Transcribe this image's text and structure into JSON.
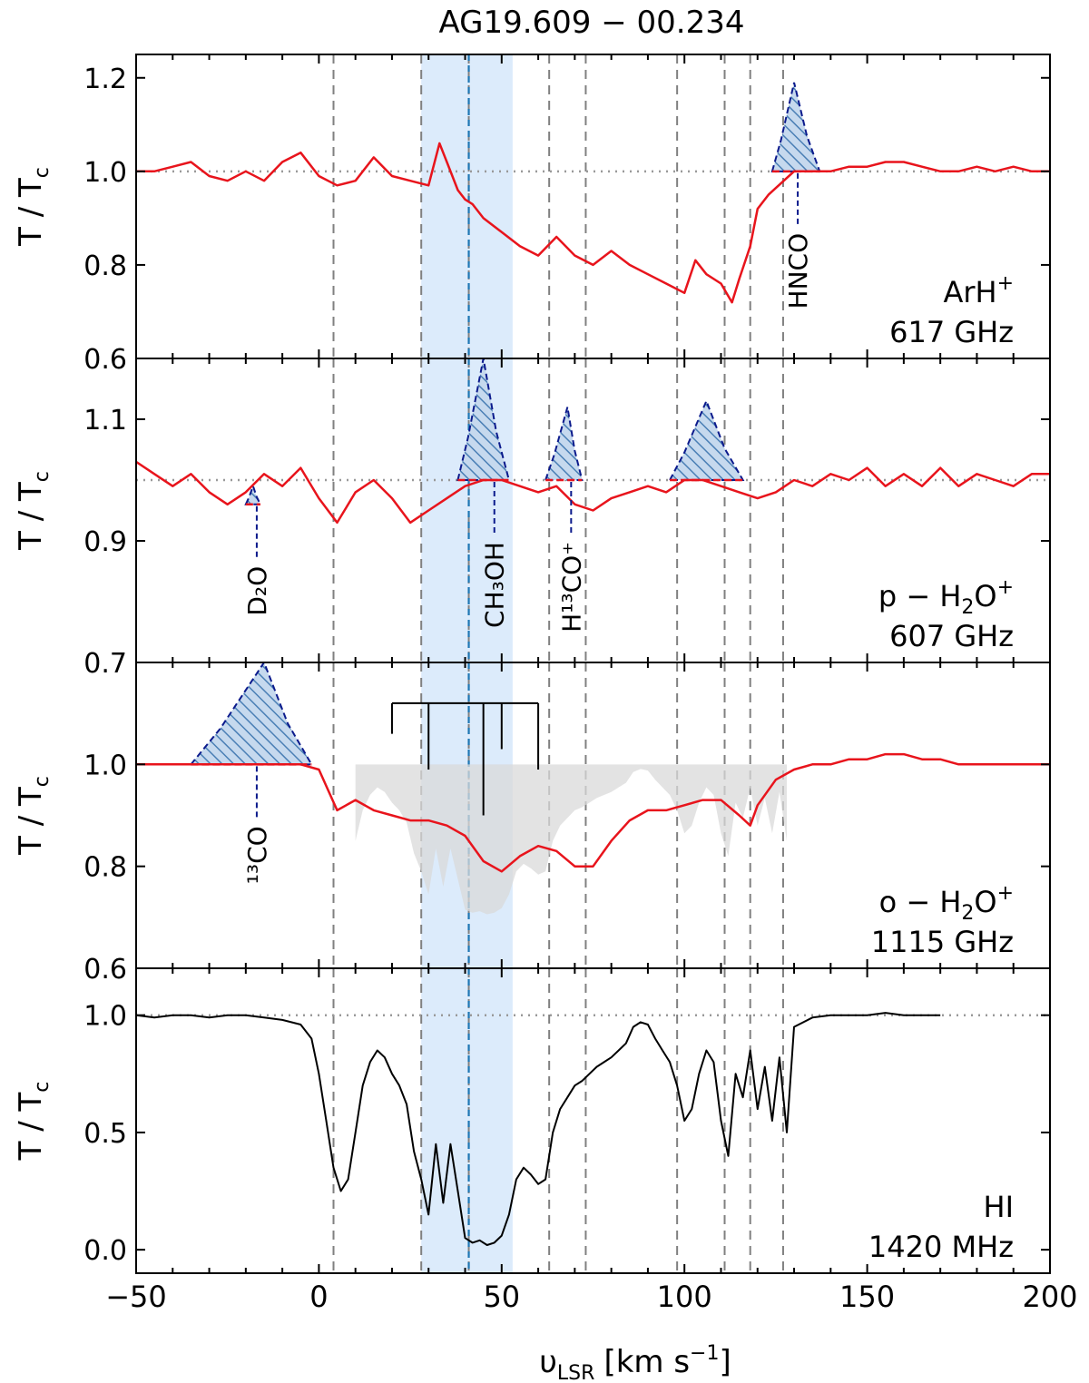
{
  "title": "AG19.609 − 00.234",
  "xlabel": {
    "main": "υ",
    "sub": "LSR",
    "units": "[km s",
    "sup": "−1",
    "close": "]"
  },
  "ylabel": {
    "main": "T / T",
    "sub": "c"
  },
  "colors": {
    "fit": "#e8141c",
    "data": "#000000",
    "blend": "#0b1a8c",
    "hatch": "#4a7fb5",
    "sysband": "#dcebfb",
    "sysline": "#1f77b4",
    "dashed": "#808080",
    "gray_fill": "#d9d9d9"
  },
  "chart_data": [
    {
      "panel": "ArH+",
      "type": "line",
      "species": "ArH",
      "species_sup": "+",
      "frequency": "617 GHz",
      "xlim": [
        -50,
        200
      ],
      "ylim": [
        0.6,
        1.25
      ],
      "yticks": [
        "0.6",
        "0.8",
        "1.0",
        "1.2"
      ],
      "series": [
        {
          "name": "observed",
          "x": [
            -50,
            -45,
            -40,
            -35,
            -30,
            -25,
            -20,
            -15,
            -10,
            -5,
            0,
            5,
            10,
            15,
            20,
            25,
            30,
            33,
            35,
            38,
            40,
            42,
            45,
            50,
            55,
            60,
            65,
            70,
            75,
            80,
            85,
            90,
            95,
            100,
            103,
            106,
            110,
            113,
            115,
            118,
            120,
            123,
            130,
            135,
            140,
            145,
            150,
            155,
            160,
            165,
            170,
            175,
            180,
            185,
            190,
            195,
            200
          ],
          "y": [
            1.0,
            1.0,
            1.01,
            1.02,
            0.99,
            0.98,
            1.0,
            0.98,
            1.02,
            1.04,
            0.99,
            0.97,
            0.98,
            1.03,
            0.99,
            0.98,
            0.97,
            1.06,
            1.02,
            0.96,
            0.94,
            0.93,
            0.9,
            0.87,
            0.84,
            0.82,
            0.86,
            0.82,
            0.8,
            0.83,
            0.8,
            0.78,
            0.76,
            0.74,
            0.81,
            0.78,
            0.76,
            0.72,
            0.77,
            0.84,
            0.92,
            0.95,
            1.0,
            1.0,
            1.0,
            1.01,
            1.01,
            1.02,
            1.02,
            1.01,
            1.0,
            1.0,
            1.01,
            1.0,
            1.01,
            1.0,
            1.0
          ]
        }
      ],
      "blends": [
        {
          "label": "HNCO",
          "x0": 124,
          "x1": 137,
          "peak_x": 130,
          "peak_y": 1.19,
          "base": 1.0,
          "label_x": 131
        }
      ]
    },
    {
      "panel": "p-H2O+",
      "type": "line",
      "species": "p − H",
      "species_sub": "2",
      "species_mid": "O",
      "species_sup": "+",
      "frequency": "607 GHz",
      "xlim": [
        -50,
        200
      ],
      "ylim": [
        0.7,
        1.2
      ],
      "yticks": [
        "0.7",
        "0.9",
        "1.1"
      ],
      "series": [
        {
          "name": "observed",
          "x": [
            -50,
            -45,
            -40,
            -35,
            -30,
            -25,
            -20,
            -15,
            -10,
            -5,
            0,
            5,
            10,
            15,
            20,
            25,
            30,
            35,
            40,
            45,
            50,
            55,
            60,
            65,
            70,
            75,
            80,
            85,
            90,
            95,
            100,
            105,
            110,
            115,
            120,
            125,
            130,
            135,
            140,
            145,
            150,
            155,
            160,
            165,
            170,
            175,
            180,
            185,
            190,
            195,
            200
          ],
          "y": [
            1.03,
            1.01,
            0.99,
            1.01,
            0.98,
            0.96,
            0.98,
            1.01,
            0.99,
            1.02,
            0.97,
            0.93,
            0.98,
            1.0,
            0.97,
            0.93,
            0.95,
            0.97,
            0.99,
            1.0,
            1.0,
            0.99,
            0.98,
            0.99,
            0.96,
            0.95,
            0.97,
            0.98,
            0.99,
            0.98,
            1.0,
            1.0,
            0.99,
            0.98,
            0.97,
            0.98,
            1.0,
            0.99,
            1.01,
            1.0,
            1.02,
            0.99,
            1.01,
            0.99,
            1.02,
            0.99,
            1.01,
            1.0,
            0.99,
            1.01,
            1.01
          ]
        }
      ],
      "blends": [
        {
          "label": "D₂O",
          "x0": -20,
          "x1": -16,
          "peak_x": -18,
          "peak_y": 0.99,
          "base": 0.96,
          "label_x": -17,
          "sub": "2",
          "pre": "D",
          "post": "O"
        },
        {
          "label": "CH₃OH",
          "x0": 38,
          "x1": 52,
          "peak_x": 45,
          "peak_y": 1.2,
          "base": 1.0,
          "label_x": 48
        },
        {
          "label": "H¹³CO⁺",
          "x0": 62,
          "x1": 72,
          "peak_x": 68,
          "peak_y": 1.12,
          "base": 1.0,
          "label_x": 69
        },
        {
          "label": "",
          "x0": 96,
          "x1": 116,
          "peak_x": 106,
          "peak_y": 1.13,
          "base": 1.0,
          "label_x": 106
        }
      ]
    },
    {
      "panel": "o-H2O+",
      "type": "line",
      "species": "o − H",
      "species_sub": "2",
      "species_mid": "O",
      "species_sup": "+",
      "frequency": "1115 GHz",
      "xlim": [
        -50,
        200
      ],
      "ylim": [
        0.6,
        1.2
      ],
      "yticks": [
        "0.6",
        "0.8",
        "1.0"
      ],
      "series": [
        {
          "name": "observed",
          "x": [
            -50,
            -40,
            -35,
            -30,
            -25,
            -20,
            -15,
            -10,
            -5,
            0,
            5,
            10,
            15,
            20,
            25,
            30,
            35,
            40,
            45,
            50,
            55,
            60,
            65,
            70,
            75,
            80,
            85,
            90,
            95,
            100,
            105,
            110,
            115,
            118,
            120,
            125,
            130,
            135,
            140,
            145,
            150,
            155,
            160,
            165,
            170,
            175,
            180,
            185,
            190,
            195,
            200
          ],
          "y": [
            1.0,
            1.0,
            1.0,
            1.0,
            1.0,
            1.0,
            1.0,
            1.0,
            1.0,
            0.99,
            0.91,
            0.93,
            0.91,
            0.9,
            0.89,
            0.89,
            0.88,
            0.86,
            0.81,
            0.79,
            0.82,
            0.84,
            0.83,
            0.8,
            0.8,
            0.85,
            0.89,
            0.91,
            0.91,
            0.92,
            0.93,
            0.93,
            0.9,
            0.88,
            0.92,
            0.97,
            0.99,
            1.0,
            1.0,
            1.01,
            1.01,
            1.02,
            1.02,
            1.01,
            1.01,
            1.0,
            1.0,
            1.0,
            1.0,
            1.0,
            1.0
          ]
        }
      ],
      "blends": [
        {
          "label": "¹³CO",
          "x0": -35,
          "x1": -2,
          "peak_x": -15,
          "peak_y": 1.2,
          "base": 1.0,
          "label_x": -17
        }
      ]
    },
    {
      "panel": "HI",
      "type": "line",
      "species": "HI",
      "frequency": "1420 MHz",
      "xlim": [
        -50,
        200
      ],
      "ylim": [
        -0.1,
        1.2
      ],
      "yticks": [
        "0.0",
        "0.5",
        "1.0"
      ],
      "series": [
        {
          "name": "observed",
          "x": [
            -50,
            -45,
            -40,
            -35,
            -30,
            -25,
            -20,
            -15,
            -10,
            -5,
            -2,
            0,
            2,
            4,
            6,
            8,
            10,
            12,
            14,
            16,
            18,
            20,
            22,
            24,
            26,
            28,
            30,
            32,
            34,
            36,
            38,
            40,
            42,
            44,
            46,
            48,
            50,
            52,
            54,
            56,
            58,
            60,
            62,
            64,
            66,
            68,
            70,
            72,
            74,
            76,
            78,
            80,
            82,
            84,
            86,
            88,
            90,
            92,
            94,
            96,
            98,
            100,
            102,
            104,
            106,
            108,
            110,
            112,
            114,
            116,
            118,
            120,
            122,
            124,
            126,
            128,
            130,
            135,
            140,
            145,
            150,
            155,
            160,
            165,
            170
          ],
          "y": [
            1.0,
            0.99,
            1.0,
            1.0,
            0.99,
            1.0,
            1.0,
            0.99,
            0.98,
            0.96,
            0.9,
            0.75,
            0.55,
            0.35,
            0.25,
            0.3,
            0.5,
            0.7,
            0.8,
            0.85,
            0.82,
            0.75,
            0.7,
            0.62,
            0.42,
            0.3,
            0.15,
            0.45,
            0.2,
            0.45,
            0.25,
            0.05,
            0.03,
            0.04,
            0.02,
            0.03,
            0.06,
            0.15,
            0.3,
            0.35,
            0.32,
            0.28,
            0.3,
            0.5,
            0.6,
            0.65,
            0.7,
            0.72,
            0.75,
            0.78,
            0.8,
            0.82,
            0.85,
            0.88,
            0.95,
            0.97,
            0.96,
            0.9,
            0.85,
            0.8,
            0.7,
            0.55,
            0.6,
            0.75,
            0.85,
            0.8,
            0.55,
            0.4,
            0.75,
            0.65,
            0.85,
            0.6,
            0.78,
            0.55,
            0.82,
            0.5,
            0.95,
            0.99,
            1.0,
            1.0,
            1.0,
            1.01,
            1.0,
            1.0,
            1.0
          ]
        }
      ],
      "blends": []
    }
  ],
  "xticks": [
    "−50",
    "0",
    "50",
    "100",
    "150",
    "200"
  ],
  "velocity_markers": [
    4,
    28,
    41,
    63,
    73,
    98,
    111,
    118,
    127
  ],
  "systemic_velocity": 41,
  "systemic_band": [
    28,
    53
  ],
  "hfs_components": [
    20,
    30,
    45,
    50,
    60
  ]
}
